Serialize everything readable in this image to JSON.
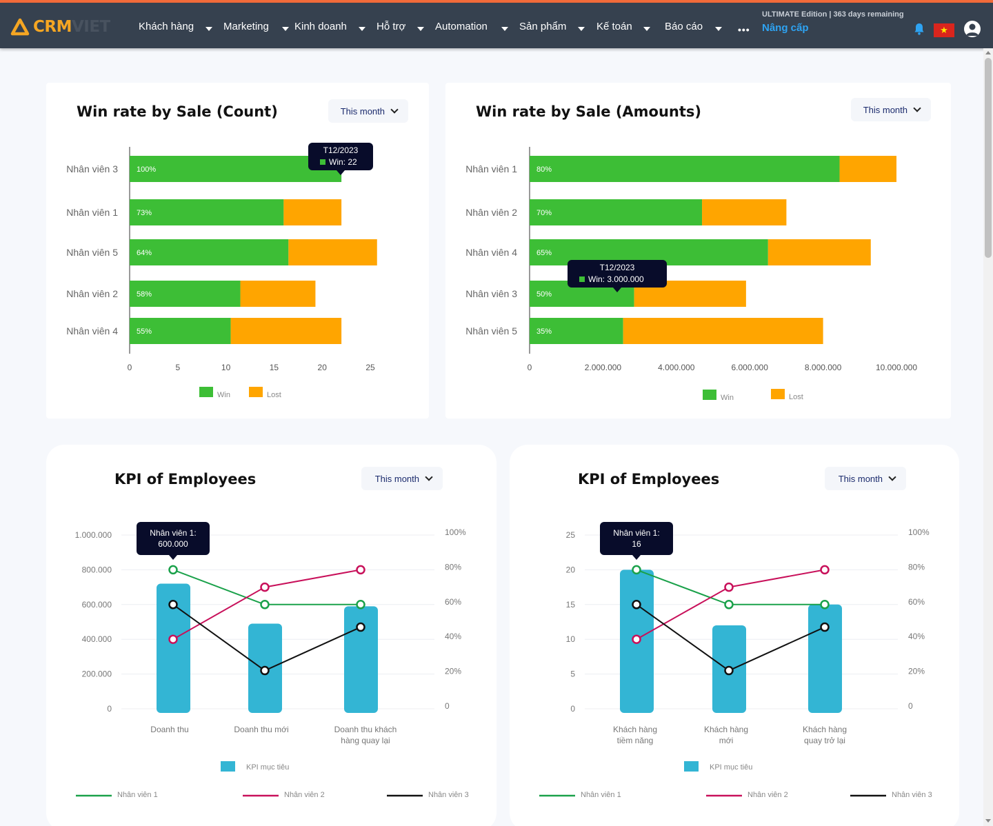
{
  "app": {
    "logo_crm": "CRM",
    "logo_viet": "VIET"
  },
  "nav": {
    "items": [
      "Khách hàng",
      "Marketing",
      "Kinh doanh",
      "Hỗ trợ",
      "Automation",
      "Sản phẩm",
      "Kế toán",
      "Báo cáo"
    ],
    "more": "•••",
    "edition": "ULTIMATE Edition | 363 days remaining",
    "upgrade": "Nâng cấp",
    "icons": [
      "bell-icon",
      "vietnam-flag-icon",
      "user-avatar-icon",
      "more-icon"
    ]
  },
  "colors": {
    "win": "#3dbe36",
    "lost": "#ffa500",
    "kpi_bar": "#33b5d4",
    "emp1": "#1aa14a",
    "emp2": "#c8105a",
    "emp3": "#111111",
    "nav": "#36414f",
    "accent": "#f26b3a"
  },
  "cards": {
    "winCount": {
      "title": "Win rate by Sale (Count)",
      "select": "This month",
      "tooltip": {
        "title": "T12/2023",
        "line": "Win: 22"
      }
    },
    "winAmount": {
      "title": "Win rate by Sale (Amounts)",
      "select": "This month",
      "tooltip": {
        "title": "T12/2023",
        "line": "Win: 3.000.000"
      }
    },
    "kpi1": {
      "title": "KPI of Employees",
      "select": "This month",
      "tooltip": {
        "title": "Nhân viên 1:",
        "line": "600.000"
      }
    },
    "kpi2": {
      "title": "KPI of Employees",
      "select": "This month",
      "tooltip": {
        "title": "Nhân viên 1:",
        "line": "16"
      }
    }
  },
  "chart_data": [
    {
      "type": "bar",
      "orientation": "horizontal",
      "stacked": true,
      "title": "Win rate by Sale (Count)",
      "categories": [
        "Nhân viên 3",
        "Nhân viên 1",
        "Nhân viên 5",
        "Nhân viên 2",
        "Nhân viên 4"
      ],
      "series": [
        {
          "name": "Win",
          "values": [
            22,
            16,
            16.5,
            11.5,
            10.5
          ],
          "labels": [
            "100%",
            "73%",
            "64%",
            "58%",
            "55%"
          ]
        },
        {
          "name": "Lost",
          "values": [
            0,
            6,
            9.2,
            7.8,
            11.5
          ]
        }
      ],
      "xlim": [
        0,
        25
      ],
      "xticks": [
        "0",
        "5",
        "10",
        "15",
        "20",
        "25"
      ],
      "legend": "bottom"
    },
    {
      "type": "bar",
      "orientation": "horizontal",
      "stacked": true,
      "title": "Win rate by Sale (Amounts)",
      "categories": [
        "Nhân viên 1",
        "Nhân viên 2",
        "Nhân viên 4",
        "Nhân viên 3",
        "Nhân viên 5"
      ],
      "series": [
        {
          "name": "Win",
          "values": [
            8450000,
            4700000,
            6500000,
            2850000,
            2550000
          ],
          "labels": [
            "80%",
            "70%",
            "65%",
            "50%",
            "35%"
          ]
        },
        {
          "name": "Lost",
          "values": [
            1550000,
            2300000,
            2800000,
            3050000,
            5450000
          ]
        }
      ],
      "xlim": [
        0,
        10000000
      ],
      "xticks": [
        "0",
        "2.000.000",
        "4.000.000",
        "6.000.000",
        "8.000.000",
        "10.000.000"
      ],
      "legend": "bottom"
    },
    {
      "type": "bar+line",
      "title": "KPI of Employees",
      "categories": [
        "Doanh thu",
        "Doanh thu mới",
        "Doanh thu khách\nhàng quay lại"
      ],
      "bars": {
        "name": "KPI mục tiêu",
        "values": [
          720000,
          490000,
          590000
        ]
      },
      "series": [
        {
          "name": "Nhân viên 1",
          "values": [
            80,
            60,
            60
          ]
        },
        {
          "name": "Nhân viên 2",
          "values": [
            40,
            70,
            80
          ]
        },
        {
          "name": "Nhân viên 3",
          "values": [
            60,
            22,
            47
          ]
        }
      ],
      "ylim": [
        0,
        1000000
      ],
      "yticks": [
        "0",
        "200.000",
        "400.000",
        "600.000",
        "800.000",
        "1.000.000"
      ],
      "y2lim": [
        0,
        100
      ],
      "y2ticks": [
        "0",
        "20%",
        "40%",
        "60%",
        "80%",
        "100%"
      ],
      "legend": "bottom"
    },
    {
      "type": "bar+line",
      "title": "KPI of Employees",
      "categories": [
        "Khách hàng\ntiềm năng",
        "Khách hàng\nmới",
        "Khách hàng\nquay trở lại"
      ],
      "bars": {
        "name": "KPI mục tiêu",
        "values": [
          20,
          12,
          15
        ]
      },
      "series": [
        {
          "name": "Nhân viên 1",
          "values": [
            80,
            60,
            60
          ]
        },
        {
          "name": "Nhân viên 2",
          "values": [
            40,
            70,
            80
          ]
        },
        {
          "name": "Nhân viên 3",
          "values": [
            60,
            22,
            47
          ]
        }
      ],
      "ylim": [
        0,
        25
      ],
      "yticks": [
        "0",
        "5",
        "10",
        "15",
        "20",
        "25"
      ],
      "y2lim": [
        0,
        100
      ],
      "y2ticks": [
        "0",
        "20%",
        "40%",
        "60%",
        "80%",
        "100%"
      ],
      "legend": "bottom"
    }
  ]
}
